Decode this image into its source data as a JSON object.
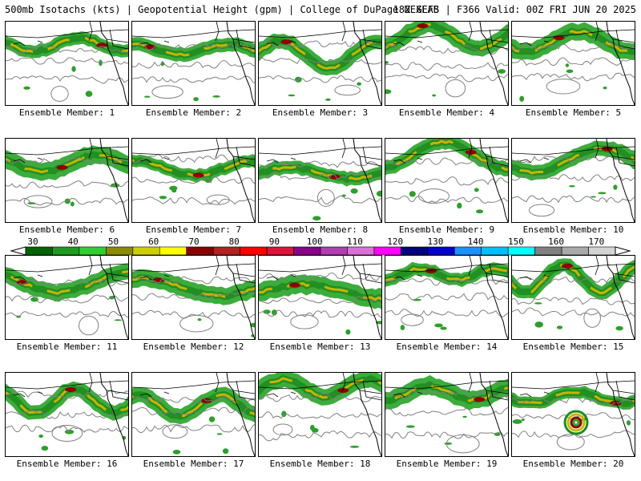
{
  "header": {
    "title_left": "500mb Isotachs (kts) | Geopotential Height (gpm) | College of DuPage NEXLAB",
    "title_right": "18Z GEFS | F366 Valid: 00Z FRI JUN 20 2025"
  },
  "colorbar": {
    "tick_labels": [
      "30",
      "40",
      "50",
      "60",
      "70",
      "80",
      "90",
      "100",
      "110",
      "120",
      "130",
      "140",
      "150",
      "160",
      "170"
    ],
    "colors": [
      "#006400",
      "#1e9a1e",
      "#32cd32",
      "#8b8b00",
      "#cdcd00",
      "#ffff00",
      "#8b0000",
      "#b22222",
      "#ff0000",
      "#dc143c",
      "#8b008b",
      "#b03eb0",
      "#da70d6",
      "#ff00ff",
      "#000080",
      "#0000cd",
      "#1e90ff",
      "#00bfff",
      "#00ffff",
      "#808080",
      "#a9a9a9",
      "#d3d3d3"
    ]
  },
  "panels": [
    {
      "label": "Ensemble Member: 1"
    },
    {
      "label": "Ensemble Member: 2"
    },
    {
      "label": "Ensemble Member: 3"
    },
    {
      "label": "Ensemble Member: 4"
    },
    {
      "label": "Ensemble Member: 5"
    },
    {
      "label": "Ensemble Member: 6"
    },
    {
      "label": "Ensemble Member: 7"
    },
    {
      "label": "Ensemble Member: 8"
    },
    {
      "label": "Ensemble Member: 9"
    },
    {
      "label": "Ensemble Member: 10"
    },
    {
      "label": "Ensemble Member: 11"
    },
    {
      "label": "Ensemble Member: 12"
    },
    {
      "label": "Ensemble Member: 13"
    },
    {
      "label": "Ensemble Member: 14"
    },
    {
      "label": "Ensemble Member: 15"
    },
    {
      "label": "Ensemble Member: 16"
    },
    {
      "label": "Ensemble Member: 17"
    },
    {
      "label": "Ensemble Member: 18"
    },
    {
      "label": "Ensemble Member: 19"
    },
    {
      "label": "Ensemble Member: 20"
    }
  ]
}
